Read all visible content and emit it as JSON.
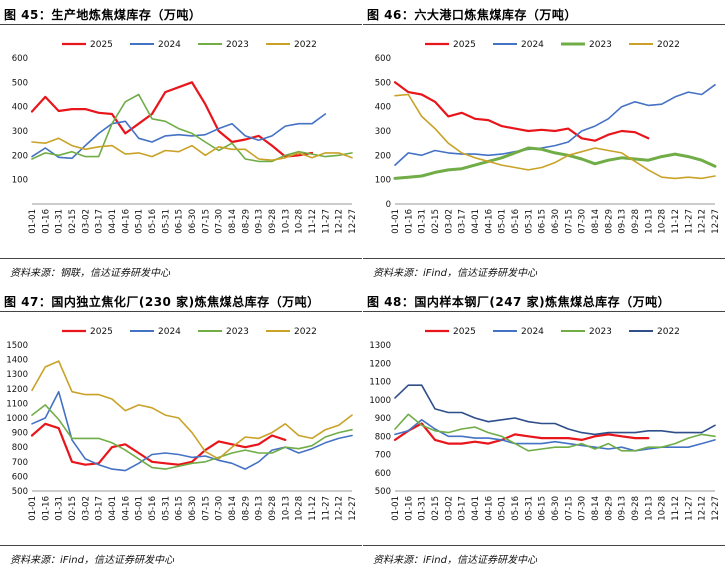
{
  "panels": [
    {
      "title": "图 45：生产地炼焦煤库存（万吨）",
      "source": "资料来源：钢联，信达证券研发中心",
      "chart_data": {
        "type": "line",
        "title": "生产地炼焦煤库存（万吨）",
        "ylim": [
          0,
          600
        ],
        "y_ticks": [
          "0",
          "100",
          "200",
          "300",
          "400",
          "500",
          "600"
        ],
        "y_ticks_visible": [
          "",
          "100",
          "200",
          "300",
          "400",
          "500",
          "600"
        ],
        "x_ticks": [
          "01-01",
          "01-16",
          "01-31",
          "02-15",
          "03-02",
          "03-17",
          "04-01",
          "04-16",
          "05-01",
          "05-16",
          "05-31",
          "06-15",
          "06-30",
          "07-15",
          "07-30",
          "08-14",
          "08-29",
          "09-13",
          "09-28",
          "10-13",
          "10-28",
          "11-12",
          "11-27",
          "12-12",
          "12-27"
        ],
        "legend_position": "top",
        "grid": false,
        "series": [
          {
            "name": "2025",
            "color": "#e8151b",
            "width": 2.2,
            "values": [
              380,
              440,
              382,
              390,
              390,
              375,
              370,
              290,
              330,
              370,
              460,
              480,
              500,
              410,
              300,
              255,
              265,
              280,
              240,
              195,
              200,
              210
            ]
          },
          {
            "name": "2024",
            "color": "#4472c4",
            "width": 1.6,
            "values": [
              195,
              230,
              192,
              188,
              240,
              290,
              330,
              340,
              270,
              255,
              280,
              285,
              280,
              285,
              310,
              330,
              280,
              262,
              280,
              320,
              330,
              330,
              370
            ]
          },
          {
            "name": "2023",
            "color": "#70ad47",
            "width": 1.6,
            "values": [
              185,
              210,
              200,
              215,
              195,
              195,
              330,
              420,
              450,
              350,
              340,
              310,
              290,
              255,
              220,
              250,
              185,
              175,
              175,
              200,
              215,
              205,
              195,
              200,
              210
            ]
          },
          {
            "name": "2022",
            "color": "#c9a227",
            "width": 1.6,
            "values": [
              255,
              250,
              270,
              240,
              225,
              235,
              240,
              205,
              210,
              195,
              220,
              215,
              240,
              200,
              235,
              225,
              225,
              185,
              180,
              190,
              210,
              190,
              210,
              210,
              190
            ]
          }
        ]
      }
    },
    {
      "title": "图 46：六大港口炼焦煤库存（万吨）",
      "source": "资料来源：iFind，信达证券研发中心",
      "chart_data": {
        "type": "line",
        "title": "六大港口炼焦煤库存（万吨）",
        "ylim": [
          0,
          600
        ],
        "y_ticks": [
          "0",
          "100",
          "200",
          "300",
          "400",
          "500",
          "600"
        ],
        "y_ticks_visible": [
          "0",
          "100",
          "200",
          "300",
          "400",
          "500",
          "600"
        ],
        "x_ticks": [
          "01-01",
          "01-16",
          "01-31",
          "02-15",
          "03-02",
          "03-17",
          "04-01",
          "04-16",
          "05-01",
          "05-16",
          "05-31",
          "06-15",
          "06-30",
          "07-15",
          "07-30",
          "08-14",
          "08-29",
          "09-13",
          "09-28",
          "10-13",
          "10-28",
          "11-12",
          "11-27",
          "12-12",
          "12-27"
        ],
        "legend_position": "top",
        "grid": false,
        "series": [
          {
            "name": "2025",
            "color": "#e8151b",
            "width": 2.2,
            "values": [
              500,
              460,
              450,
              420,
              360,
              375,
              350,
              345,
              320,
              310,
              300,
              305,
              300,
              310,
              270,
              260,
              285,
              300,
              295,
              270
            ]
          },
          {
            "name": "2024",
            "color": "#4472c4",
            "width": 1.6,
            "values": [
              160,
              210,
              200,
              220,
              210,
              205,
              205,
              200,
              205,
              215,
              225,
              230,
              240,
              255,
              300,
              320,
              350,
              400,
              420,
              405,
              410,
              440,
              460,
              450,
              490
            ]
          },
          {
            "name": "2023",
            "color": "#70ad47",
            "width": 3.0,
            "values": [
              105,
              110,
              115,
              130,
              140,
              145,
              160,
              175,
              190,
              210,
              230,
              225,
              210,
              200,
              185,
              165,
              180,
              190,
              185,
              180,
              195,
              205,
              195,
              180,
              155
            ]
          },
          {
            "name": "2022",
            "color": "#c9a227",
            "width": 1.6,
            "values": [
              445,
              450,
              360,
              310,
              250,
              210,
              190,
              175,
              160,
              150,
              140,
              150,
              170,
              200,
              215,
              230,
              220,
              210,
              175,
              140,
              110,
              105,
              110,
              105,
              115
            ]
          }
        ]
      }
    },
    {
      "title": "图 47：国内独立焦化厂(230 家)炼焦煤总库存（万吨）",
      "source": "资料来源：iFind，信达证券研发中心",
      "chart_data": {
        "type": "line",
        "title": "国内独立焦化厂(230 家)炼焦煤总库存（万吨）",
        "ylim": [
          500,
          1500
        ],
        "y_ticks": [
          "500",
          "600",
          "700",
          "800",
          "900",
          "1000",
          "1100",
          "1200",
          "1300",
          "1400",
          "1500"
        ],
        "y_ticks_visible": [
          "500",
          "600",
          "700",
          "800",
          "900",
          "1000",
          "1100",
          "1200",
          "1300",
          "1400",
          "1500"
        ],
        "x_ticks": [
          "01-01",
          "01-16",
          "01-31",
          "02-15",
          "03-02",
          "03-17",
          "04-01",
          "04-16",
          "05-01",
          "05-16",
          "05-31",
          "06-15",
          "06-30",
          "07-15",
          "07-30",
          "08-14",
          "08-29",
          "09-13",
          "09-28",
          "10-13",
          "10-28",
          "11-12",
          "11-27",
          "12-12",
          "12-27"
        ],
        "legend_position": "top",
        "grid": false,
        "series": [
          {
            "name": "2025",
            "color": "#e8151b",
            "width": 2.2,
            "values": [
              880,
              960,
              930,
              700,
              680,
              690,
              800,
              820,
              760,
              700,
              690,
              680,
              700,
              780,
              840,
              820,
              800,
              820,
              880,
              850
            ]
          },
          {
            "name": "2024",
            "color": "#4472c4",
            "width": 1.6,
            "values": [
              960,
              1000,
              1180,
              850,
              720,
              680,
              650,
              640,
              690,
              750,
              760,
              750,
              730,
              740,
              710,
              690,
              650,
              700,
              780,
              800,
              760,
              790,
              830,
              860,
              880
            ]
          },
          {
            "name": "2023",
            "color": "#70ad47",
            "width": 1.6,
            "values": [
              1020,
              1090,
              990,
              860,
              860,
              860,
              830,
              780,
              720,
              660,
              650,
              670,
              690,
              700,
              730,
              760,
              780,
              760,
              760,
              800,
              790,
              810,
              870,
              900,
              920
            ]
          },
          {
            "name": "2022",
            "color": "#c9a227",
            "width": 1.6,
            "values": [
              1190,
              1350,
              1390,
              1180,
              1160,
              1160,
              1130,
              1050,
              1090,
              1070,
              1020,
              1000,
              900,
              770,
              720,
              800,
              870,
              860,
              900,
              960,
              880,
              860,
              920,
              950,
              1020
            ]
          }
        ]
      }
    },
    {
      "title": "图 48：国内样本钢厂(247 家)炼焦煤总库存（万吨）",
      "source": "资料来源：iFind，信达证券研发中心",
      "chart_data": {
        "type": "line",
        "title": "国内样本钢厂(247 家)炼焦煤总库存（万吨）",
        "ylim": [
          500,
          1300
        ],
        "y_ticks": [
          "500",
          "600",
          "700",
          "800",
          "900",
          "1000",
          "1100",
          "1200",
          "1300"
        ],
        "y_ticks_visible": [
          "500",
          "600",
          "700",
          "800",
          "900",
          "1000",
          "1100",
          "1200",
          "1300"
        ],
        "x_ticks": [
          "01-01",
          "01-16",
          "01-31",
          "02-15",
          "03-02",
          "03-17",
          "04-01",
          "04-16",
          "05-01",
          "05-16",
          "05-31",
          "06-15",
          "06-30",
          "07-15",
          "07-30",
          "08-14",
          "08-29",
          "09-13",
          "09-28",
          "10-13",
          "10-28",
          "11-12",
          "11-27",
          "12-12",
          "12-27"
        ],
        "legend_position": "top",
        "grid": false,
        "series": [
          {
            "name": "2025",
            "color": "#e8151b",
            "width": 2.2,
            "values": [
              780,
              830,
              870,
              780,
              760,
              760,
              770,
              760,
              780,
              810,
              800,
              790,
              790,
              790,
              780,
              800,
              810,
              800,
              790,
              790
            ]
          },
          {
            "name": "2024",
            "color": "#4472c4",
            "width": 1.6,
            "values": [
              810,
              830,
              890,
              840,
              800,
              800,
              790,
              790,
              780,
              760,
              760,
              760,
              770,
              760,
              750,
              740,
              730,
              740,
              720,
              730,
              740,
              740,
              740,
              760,
              780
            ]
          },
          {
            "name": "2023",
            "color": "#70ad47",
            "width": 1.6,
            "values": [
              840,
              920,
              860,
              830,
              820,
              840,
              850,
              820,
              800,
              760,
              720,
              730,
              740,
              740,
              760,
              730,
              760,
              720,
              720,
              740,
              740,
              760,
              790,
              810,
              800
            ]
          },
          {
            "name": "2022",
            "color": "#2f4f8a",
            "width": 1.6,
            "values": [
              1010,
              1080,
              1080,
              950,
              930,
              930,
              900,
              880,
              890,
              900,
              880,
              870,
              870,
              840,
              820,
              810,
              820,
              820,
              820,
              830,
              830,
              820,
              820,
              820,
              860
            ]
          }
        ]
      }
    }
  ]
}
